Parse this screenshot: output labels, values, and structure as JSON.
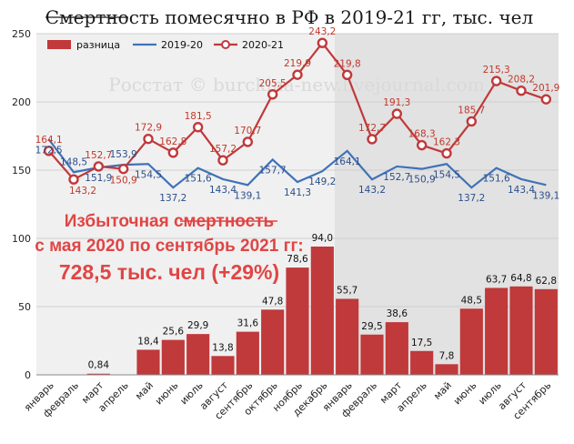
{
  "chart_data": {
    "type": "bar",
    "title": "Смертность помесячно в РФ в 2019-21 гг, тыс. чел",
    "categories": [
      "январь",
      "февраль",
      "март",
      "апрель",
      "май",
      "июнь",
      "июль",
      "август",
      "сентябрь",
      "октябрь",
      "ноябрь",
      "декабрь",
      "январь",
      "февраль",
      "март",
      "апрель",
      "май",
      "июнь",
      "июль",
      "август",
      "сентябрь"
    ],
    "ylim": [
      0,
      250
    ],
    "yticks": [
      0,
      50,
      100,
      150,
      200,
      250
    ],
    "grid": true,
    "legend_position": "top-left",
    "series": [
      {
        "name": "разница",
        "type": "bar",
        "color": "#c0393b",
        "values": [
          null,
          null,
          0.84,
          null,
          18.4,
          25.6,
          29.9,
          13.8,
          31.6,
          47.8,
          78.6,
          94.0,
          55.7,
          29.5,
          38.6,
          17.5,
          7.8,
          48.5,
          63.7,
          64.8,
          62.8
        ],
        "labels": [
          "",
          "",
          "0,84",
          "",
          "18,4",
          "25,6",
          "29,9",
          "13,8",
          "31,6",
          "47,8",
          "78,6",
          "94,0",
          "55,7",
          "29,5",
          "38,6",
          "17,5",
          "7,8",
          "48,5",
          "63,7",
          "64,8",
          "62,8"
        ]
      },
      {
        "name": "2019-20",
        "type": "line",
        "color": "#3f72b8",
        "values": [
          172.5,
          148.5,
          151.9,
          153.9,
          154.5,
          137.2,
          151.6,
          143.4,
          139.1,
          157.7,
          141.3,
          149.2,
          164.1,
          143.2,
          152.7,
          150.9,
          154.5,
          137.2,
          151.6,
          143.4,
          139.1
        ],
        "labels": [
          "172,5",
          "148,5",
          "151,9",
          "153,9",
          "154,5",
          "137,2",
          "151,6",
          "143,4",
          "139,1",
          "157,7",
          "141,3",
          "149,2",
          "164,1",
          "143,2",
          "152,7",
          "150,9",
          "154,5",
          "137,2",
          "151,6",
          "143,4",
          "139,1"
        ]
      },
      {
        "name": "2020-21",
        "type": "line",
        "color": "#c0393b",
        "values": [
          164.1,
          143.2,
          152.7,
          150.9,
          172.9,
          162.8,
          181.5,
          157.2,
          170.7,
          205.5,
          219.9,
          243.2,
          219.8,
          172.7,
          191.3,
          168.3,
          162.3,
          185.7,
          215.3,
          208.2,
          201.9
        ],
        "labels": [
          "164,1",
          "143,2",
          "152,7",
          "150,9",
          "172,9",
          "162,8",
          "181,5",
          "157,2",
          "170,7",
          "205,5",
          "219,9",
          "243,2",
          "219,8",
          "172,7",
          "191,3",
          "168,3",
          "162,3",
          "185,7",
          "215,3",
          "208,2",
          "201,9"
        ]
      }
    ],
    "shaded_region_from_index": 12,
    "annotation": {
      "line1": "Избыточная смертность",
      "line2": "с мая 2020 по сентябрь 2021 гг:",
      "line3": "728,5 тыс. чел (+29%)"
    },
    "watermark": "Росстат © burckina-new.livejournal.com"
  },
  "colors": {
    "bar": "#c0393b",
    "line2019": "#3f72b8",
    "line2020": "#c0393b",
    "shade": "#e2e2e2",
    "plotbg": "#f0f0f0",
    "grid": "#cfcfcf"
  }
}
